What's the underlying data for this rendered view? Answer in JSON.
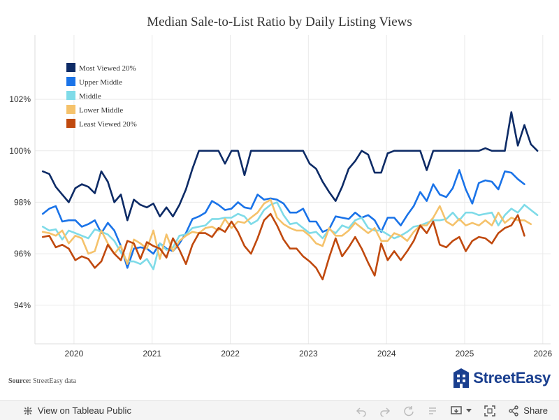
{
  "chart_data": {
    "type": "line",
    "title": "Median Sale-to-List Ratio by Daily Listing Views",
    "xlabel": "",
    "ylabel": "",
    "xlim": [
      2019.5,
      2026.1
    ],
    "ylim": [
      92.5,
      104.5
    ],
    "y_ticks": [
      94,
      96,
      98,
      100,
      102
    ],
    "y_tick_labels": [
      "94%",
      "96%",
      "98%",
      "100%",
      "102%"
    ],
    "x_ticks": [
      2020,
      2021,
      2022,
      2023,
      2024,
      2025,
      2026
    ],
    "x_tick_labels": [
      "2020",
      "2021",
      "2022",
      "2023",
      "2024",
      "2025",
      "2026"
    ],
    "legend_position": "top-left",
    "series": [
      {
        "name": "Most Viewed 20%",
        "color": "#0d2b66",
        "start": 2019.6,
        "step": 0.0833,
        "values": [
          99.2,
          99.1,
          98.6,
          98.3,
          98.0,
          98.55,
          98.7,
          98.6,
          98.35,
          99.2,
          98.8,
          98.0,
          98.3,
          97.3,
          98.1,
          97.9,
          97.8,
          97.95,
          97.45,
          97.8,
          97.45,
          97.9,
          98.5,
          99.3,
          100.0,
          100.0,
          100.0,
          100.0,
          99.5,
          100.0,
          100.0,
          99.05,
          100.0,
          100.0,
          100.0,
          100.0,
          100.0,
          100.0,
          100.0,
          100.0,
          100.0,
          99.5,
          99.3,
          98.8,
          98.4,
          98.05,
          98.6,
          99.3,
          99.6,
          100.0,
          99.85,
          99.15,
          99.15,
          99.9,
          100.0,
          100.0,
          100.0,
          100.0,
          100.0,
          99.25,
          100.0,
          100.0,
          100.0,
          100.0,
          100.0,
          100.0,
          100.0,
          100.0,
          100.1,
          100.0,
          100.0,
          100.0,
          101.5,
          100.2,
          101.0,
          100.25,
          100.0
        ]
      },
      {
        "name": "Upper Middle",
        "color": "#1a73e8",
        "start": 2019.6,
        "step": 0.0833,
        "values": [
          97.55,
          97.75,
          97.85,
          97.25,
          97.3,
          97.3,
          97.05,
          97.15,
          97.3,
          96.8,
          97.2,
          96.9,
          96.3,
          95.45,
          96.2,
          96.25,
          96.2,
          96.0,
          96.4,
          96.2,
          96.1,
          96.4,
          96.8,
          97.35,
          97.45,
          97.6,
          98.05,
          97.9,
          97.7,
          97.75,
          98.0,
          97.8,
          97.75,
          98.3,
          98.1,
          98.15,
          98.1,
          97.95,
          97.6,
          97.6,
          97.75,
          97.25,
          97.25,
          96.85,
          96.95,
          97.45,
          97.4,
          97.35,
          97.6,
          97.4,
          97.5,
          97.3,
          96.85,
          97.4,
          97.4,
          97.1,
          97.5,
          97.85,
          98.4,
          98.05,
          98.7,
          98.3,
          98.2,
          98.55,
          99.25,
          98.5,
          97.95,
          98.75,
          98.85,
          98.8,
          98.5,
          99.2,
          99.15,
          98.9,
          98.7
        ]
      },
      {
        "name": "Middle",
        "color": "#7fdbe8",
        "start": 2019.6,
        "step": 0.0833,
        "values": [
          97.05,
          96.9,
          96.95,
          96.55,
          96.9,
          96.8,
          96.7,
          96.6,
          96.95,
          96.85,
          96.75,
          96.5,
          96.05,
          95.7,
          95.7,
          95.6,
          95.8,
          95.4,
          96.4,
          96.15,
          96.25,
          96.7,
          96.75,
          97.0,
          97.05,
          97.1,
          97.35,
          97.35,
          97.4,
          97.4,
          97.55,
          97.45,
          97.15,
          97.3,
          97.7,
          97.9,
          98.0,
          97.5,
          97.15,
          97.2,
          97.0,
          96.8,
          96.85,
          96.6,
          96.95,
          96.8,
          97.1,
          97.0,
          97.3,
          97.4,
          97.0,
          96.9,
          96.9,
          96.75,
          96.6,
          96.7,
          96.85,
          97.05,
          97.1,
          97.2,
          97.3,
          97.3,
          97.35,
          97.6,
          97.3,
          97.6,
          97.6,
          97.5,
          97.55,
          97.6,
          97.1,
          97.5,
          97.75,
          97.6,
          97.9,
          97.7,
          97.5
        ]
      },
      {
        "name": "Lower Middle",
        "color": "#f5c26b",
        "start": 2019.6,
        "step": 0.0833,
        "values": [
          96.85,
          96.8,
          96.7,
          96.9,
          96.4,
          96.7,
          96.6,
          96.0,
          96.1,
          96.9,
          96.4,
          96.0,
          96.3,
          95.6,
          96.55,
          96.4,
          96.2,
          96.9,
          95.8,
          96.75,
          96.1,
          96.5,
          96.7,
          96.85,
          96.8,
          97.0,
          97.05,
          96.9,
          97.35,
          97.0,
          97.25,
          97.2,
          97.4,
          97.6,
          97.95,
          98.1,
          97.4,
          97.15,
          97.0,
          96.9,
          96.9,
          96.7,
          96.4,
          96.3,
          97.0,
          96.7,
          96.7,
          96.9,
          97.2,
          97.0,
          96.8,
          97.0,
          96.5,
          96.5,
          96.8,
          96.7,
          96.5,
          96.85,
          97.1,
          97.1,
          97.4,
          97.85,
          97.25,
          97.1,
          97.35,
          97.1,
          97.2,
          97.1,
          97.3,
          97.1,
          97.6,
          97.2,
          97.4,
          97.3,
          97.3,
          97.15
        ]
      },
      {
        "name": "Least Viewed 20%",
        "color": "#c0490e",
        "start": 2019.6,
        "step": 0.0833,
        "values": [
          96.65,
          96.7,
          96.25,
          96.35,
          96.2,
          95.75,
          95.9,
          95.8,
          95.45,
          95.7,
          96.35,
          96.0,
          95.75,
          96.5,
          96.4,
          95.8,
          96.45,
          96.3,
          96.2,
          95.85,
          96.6,
          96.15,
          95.6,
          96.35,
          96.8,
          96.8,
          96.65,
          97.0,
          96.85,
          97.25,
          96.85,
          96.3,
          96.0,
          96.6,
          97.3,
          97.55,
          97.1,
          96.55,
          96.2,
          96.2,
          95.9,
          95.7,
          95.45,
          95.0,
          95.85,
          96.6,
          95.9,
          96.25,
          96.65,
          96.2,
          95.65,
          95.15,
          96.4,
          95.75,
          96.1,
          95.75,
          96.1,
          96.5,
          97.1,
          96.8,
          97.25,
          96.35,
          96.25,
          96.5,
          96.65,
          96.1,
          96.5,
          96.65,
          96.6,
          96.4,
          96.8,
          97.0,
          97.1,
          97.5,
          96.7
        ]
      }
    ]
  },
  "footer": {
    "source_label": "Source:",
    "source_text": "StreetEasy data",
    "logo_text": "StreetEasy"
  },
  "toolbar": {
    "view_label": "View on Tableau Public",
    "share_label": "Share"
  },
  "colors": {
    "grid": "#eaeaea",
    "axis": "#dddddd",
    "brand": "#1a3f8f"
  }
}
